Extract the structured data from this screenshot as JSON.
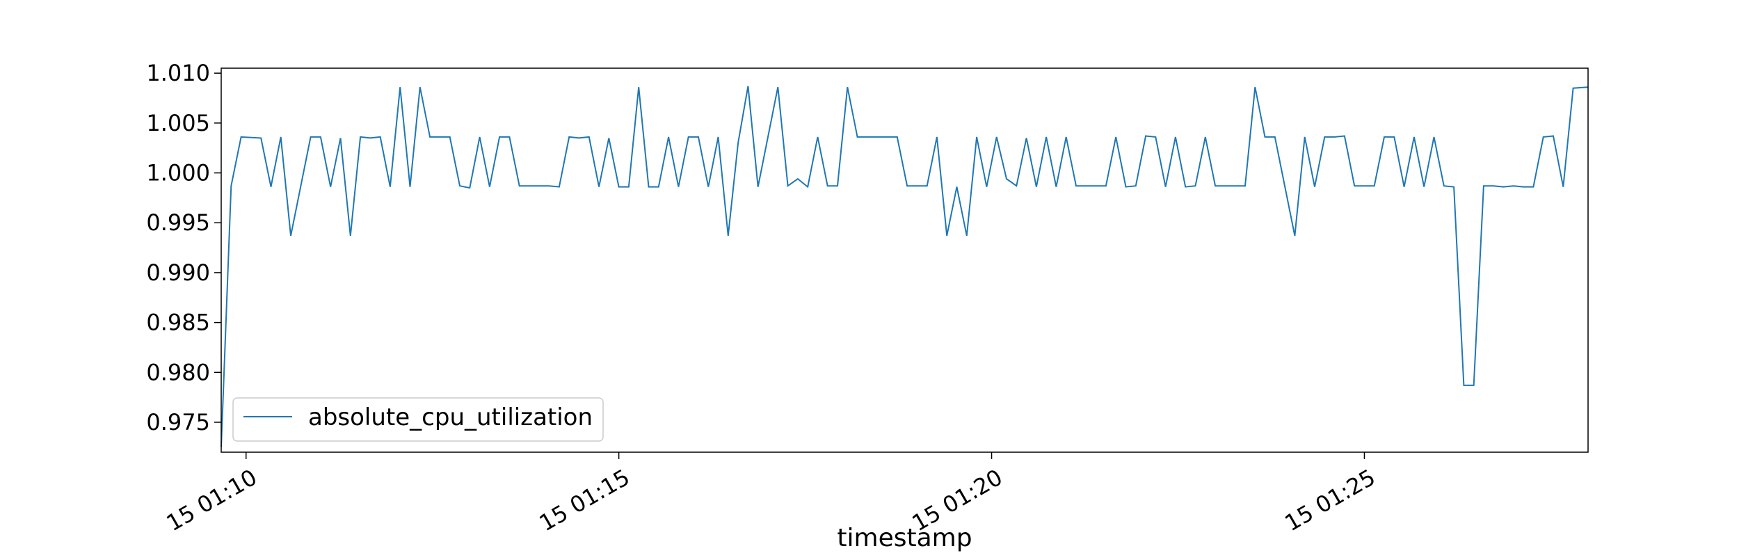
{
  "chart_data": {
    "type": "line",
    "xlabel": "timestamp",
    "ylabel": "",
    "ylim": [
      0.972,
      1.0105
    ],
    "yticks": [
      {
        "value": 0.975,
        "label": "0.975"
      },
      {
        "value": 0.98,
        "label": "0.980"
      },
      {
        "value": 0.985,
        "label": "0.985"
      },
      {
        "value": 0.99,
        "label": "0.990"
      },
      {
        "value": 0.995,
        "label": "0.995"
      },
      {
        "value": 1.0,
        "label": "1.000"
      },
      {
        "value": 1.005,
        "label": "1.005"
      },
      {
        "value": 1.01,
        "label": "1.010"
      }
    ],
    "xlim": [
      "01:09:40",
      "01:28:00"
    ],
    "xticks": [
      {
        "value": "01:10:00",
        "label": "15 01:10"
      },
      {
        "value": "01:15:00",
        "label": "15 01:15"
      },
      {
        "value": "01:20:00",
        "label": "15 01:20"
      },
      {
        "value": "01:25:00",
        "label": "15 01:25"
      }
    ],
    "grid": false,
    "legend_position": "lower left",
    "series": [
      {
        "name": "absolute_cpu_utilization",
        "color": "#1f77b4",
        "points": [
          [
            "01:09:40",
            0.9725
          ],
          [
            "01:09:48",
            0.9987
          ],
          [
            "01:09:56",
            1.0036
          ],
          [
            "01:10:12",
            1.0035
          ],
          [
            "01:10:20",
            0.9986
          ],
          [
            "01:10:28",
            1.0036
          ],
          [
            "01:10:36",
            0.9937
          ],
          [
            "01:10:52",
            1.0036
          ],
          [
            "01:11:00",
            1.0036
          ],
          [
            "01:11:08",
            0.9986
          ],
          [
            "01:11:16",
            1.0035
          ],
          [
            "01:11:24",
            0.9937
          ],
          [
            "01:11:32",
            1.0036
          ],
          [
            "01:11:40",
            1.0035
          ],
          [
            "01:11:48",
            1.0036
          ],
          [
            "01:11:56",
            0.9986
          ],
          [
            "01:12:04",
            1.0086
          ],
          [
            "01:12:12",
            0.9986
          ],
          [
            "01:12:20",
            1.0086
          ],
          [
            "01:12:28",
            1.0036
          ],
          [
            "01:12:44",
            1.0036
          ],
          [
            "01:12:52",
            0.9987
          ],
          [
            "01:13:00",
            0.9985
          ],
          [
            "01:13:08",
            1.0036
          ],
          [
            "01:13:16",
            0.9986
          ],
          [
            "01:13:24",
            1.0036
          ],
          [
            "01:13:32",
            1.0036
          ],
          [
            "01:13:40",
            0.9987
          ],
          [
            "01:14:04",
            0.9987
          ],
          [
            "01:14:12",
            0.9986
          ],
          [
            "01:14:20",
            1.0036
          ],
          [
            "01:14:28",
            1.0035
          ],
          [
            "01:14:36",
            1.0036
          ],
          [
            "01:14:44",
            0.9986
          ],
          [
            "01:14:52",
            1.0035
          ],
          [
            "01:15:00",
            0.9986
          ],
          [
            "01:15:08",
            0.9986
          ],
          [
            "01:15:16",
            1.0086
          ],
          [
            "01:15:24",
            0.9986
          ],
          [
            "01:15:32",
            0.9986
          ],
          [
            "01:15:40",
            1.0036
          ],
          [
            "01:15:48",
            0.9986
          ],
          [
            "01:15:56",
            1.0036
          ],
          [
            "01:16:04",
            1.0036
          ],
          [
            "01:16:12",
            0.9986
          ],
          [
            "01:16:20",
            1.0036
          ],
          [
            "01:16:28",
            0.9937
          ],
          [
            "01:16:36",
            1.003
          ],
          [
            "01:16:44",
            1.0087
          ],
          [
            "01:16:52",
            0.9986
          ],
          [
            "01:17:00",
            1.0036
          ],
          [
            "01:17:08",
            1.0086
          ],
          [
            "01:17:16",
            0.9987
          ],
          [
            "01:17:24",
            0.9994
          ],
          [
            "01:17:32",
            0.9986
          ],
          [
            "01:17:40",
            1.0036
          ],
          [
            "01:17:48",
            0.9987
          ],
          [
            "01:17:56",
            0.9987
          ],
          [
            "01:18:04",
            1.0086
          ],
          [
            "01:18:12",
            1.0036
          ],
          [
            "01:18:44",
            1.0036
          ],
          [
            "01:18:52",
            0.9987
          ],
          [
            "01:19:08",
            0.9987
          ],
          [
            "01:19:16",
            1.0036
          ],
          [
            "01:19:24",
            0.9937
          ],
          [
            "01:19:32",
            0.9986
          ],
          [
            "01:19:40",
            0.9937
          ],
          [
            "01:19:48",
            1.0036
          ],
          [
            "01:19:56",
            0.9986
          ],
          [
            "01:20:04",
            1.0036
          ],
          [
            "01:20:12",
            0.9994
          ],
          [
            "01:20:20",
            0.9987
          ],
          [
            "01:20:28",
            1.0035
          ],
          [
            "01:20:36",
            0.9986
          ],
          [
            "01:20:44",
            1.0036
          ],
          [
            "01:20:52",
            0.9986
          ],
          [
            "01:21:00",
            1.0036
          ],
          [
            "01:21:08",
            0.9987
          ],
          [
            "01:21:32",
            0.9987
          ],
          [
            "01:21:40",
            1.0036
          ],
          [
            "01:21:48",
            0.9986
          ],
          [
            "01:21:56",
            0.9987
          ],
          [
            "01:22:04",
            1.0037
          ],
          [
            "01:22:12",
            1.0036
          ],
          [
            "01:22:20",
            0.9986
          ],
          [
            "01:22:28",
            1.0036
          ],
          [
            "01:22:36",
            0.9986
          ],
          [
            "01:22:44",
            0.9987
          ],
          [
            "01:22:52",
            1.0036
          ],
          [
            "01:23:00",
            0.9987
          ],
          [
            "01:23:24",
            0.9987
          ],
          [
            "01:23:32",
            1.0086
          ],
          [
            "01:23:40",
            1.0036
          ],
          [
            "01:23:48",
            1.0036
          ],
          [
            "01:24:04",
            0.9937
          ],
          [
            "01:24:12",
            1.0036
          ],
          [
            "01:24:20",
            0.9986
          ],
          [
            "01:24:28",
            1.0036
          ],
          [
            "01:24:36",
            1.0036
          ],
          [
            "01:24:44",
            1.0037
          ],
          [
            "01:24:52",
            0.9987
          ],
          [
            "01:25:08",
            0.9987
          ],
          [
            "01:25:16",
            1.0036
          ],
          [
            "01:25:24",
            1.0036
          ],
          [
            "01:25:32",
            0.9986
          ],
          [
            "01:25:40",
            1.0036
          ],
          [
            "01:25:48",
            0.9986
          ],
          [
            "01:25:56",
            1.0036
          ],
          [
            "01:26:04",
            0.9987
          ],
          [
            "01:26:12",
            0.9986
          ],
          [
            "01:26:20",
            0.9787
          ],
          [
            "01:26:28",
            0.9787
          ],
          [
            "01:26:36",
            0.9987
          ],
          [
            "01:26:44",
            0.9987
          ],
          [
            "01:26:52",
            0.9986
          ],
          [
            "01:27:00",
            0.9987
          ],
          [
            "01:27:08",
            0.9986
          ],
          [
            "01:27:16",
            0.9986
          ],
          [
            "01:27:24",
            1.0036
          ],
          [
            "01:27:32",
            1.0037
          ],
          [
            "01:27:40",
            0.9986
          ],
          [
            "01:27:48",
            1.0085
          ],
          [
            "01:28:00",
            1.0086
          ]
        ]
      }
    ]
  }
}
